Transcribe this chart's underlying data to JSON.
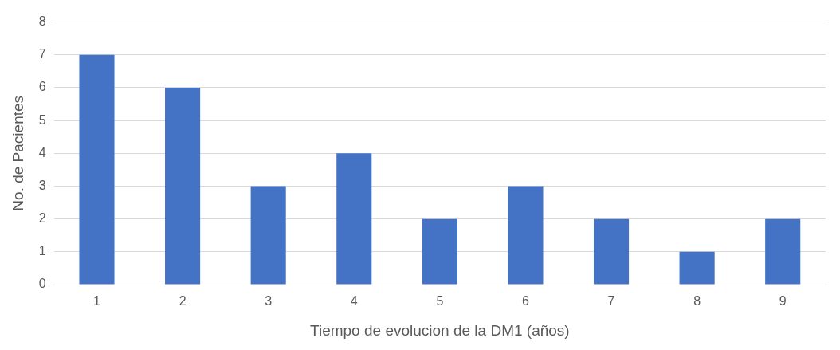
{
  "chart_data": {
    "type": "bar",
    "xlabel": "Tiempo de evolucion de la DM1 (años)",
    "ylabel": "No. de Pacientes",
    "categories": [
      "1",
      "2",
      "3",
      "4",
      "5",
      "6",
      "7",
      "8",
      "9"
    ],
    "values": [
      7,
      6,
      3,
      4,
      2,
      3,
      2,
      1,
      2
    ],
    "color": "#4472c4",
    "ylim": [
      0,
      8
    ],
    "yticks": [
      0,
      1,
      2,
      3,
      4,
      5,
      6,
      7,
      8
    ],
    "grid": "y",
    "legend": false
  }
}
